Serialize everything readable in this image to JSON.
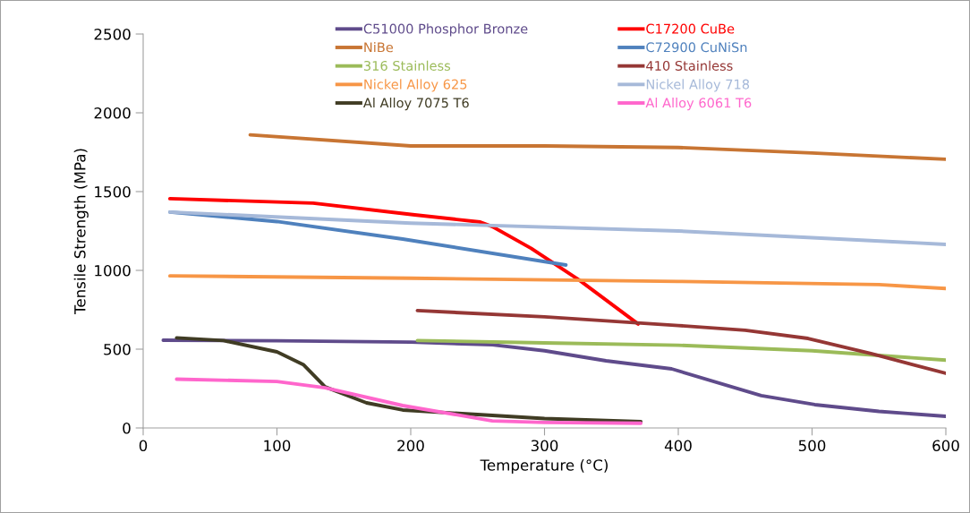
{
  "chart_data": {
    "type": "line",
    "xlabel": "Temperature (°C)",
    "ylabel": "Tensile Strength (MPa)",
    "xlim": [
      0,
      600
    ],
    "xticks": [
      0,
      100,
      200,
      300,
      400,
      500,
      600
    ],
    "ylim": [
      0,
      2500
    ],
    "yticks": [
      0,
      500,
      1000,
      1500,
      2000,
      2500
    ],
    "grid": false,
    "legend": "top",
    "marker": "none",
    "line_style": "solid",
    "series": [
      {
        "name": "C51000 Phosphor Bronze",
        "color": "#5f4b8b",
        "x": [
          15,
          100,
          200,
          261,
          300,
          346,
          395,
          462,
          502,
          550,
          600
        ],
        "values": [
          557,
          553,
          545,
          528,
          490,
          426,
          375,
          205,
          148,
          105,
          74
        ]
      },
      {
        "name": "C17200 CuBe",
        "color": "#ff0000",
        "x": [
          20,
          127,
          203,
          252,
          261,
          290,
          326,
          370
        ],
        "values": [
          1455,
          1427,
          1352,
          1307,
          1278,
          1140,
          938,
          660
        ]
      },
      {
        "name": "NiBe",
        "color": "#c87533",
        "x": [
          80,
          200,
          300,
          400,
          500,
          600
        ],
        "values": [
          1860,
          1790,
          1790,
          1780,
          1745,
          1705
        ]
      },
      {
        "name": "C72900 CuNiSn",
        "color": "#4f81bd",
        "x": [
          20,
          100,
          194,
          316
        ],
        "values": [
          1370,
          1310,
          1199,
          1034
        ]
      },
      {
        "name": "316 Stainless",
        "color": "#9bbb59",
        "x": [
          205,
          300,
          400,
          500,
          600
        ],
        "values": [
          555,
          540,
          525,
          490,
          430
        ]
      },
      {
        "name": "410 Stainless",
        "color": "#953735",
        "x": [
          205,
          300,
          400,
          450,
          497,
          544,
          600
        ],
        "values": [
          745,
          705,
          650,
          620,
          568,
          472,
          347
        ]
      },
      {
        "name": "Nickel Alloy 625",
        "color": "#f79646",
        "x": [
          20,
          200,
          400,
          550,
          600
        ],
        "values": [
          965,
          950,
          930,
          910,
          885
        ]
      },
      {
        "name": "Nickel Alloy 718",
        "color": "#a6b9d9",
        "x": [
          20,
          200,
          400,
          600
        ],
        "values": [
          1370,
          1300,
          1250,
          1165
        ]
      },
      {
        "name": "Al Alloy 7075 T6",
        "color": "#403c24",
        "x": [
          25,
          60,
          100,
          120,
          136,
          167,
          194,
          250,
          300,
          372
        ],
        "values": [
          572,
          555,
          483,
          400,
          261,
          159,
          114,
          85,
          60,
          40
        ]
      },
      {
        "name": "Al Alloy 6061 T6",
        "color": "#ff66cc",
        "x": [
          25,
          100,
          136,
          194,
          261,
          300,
          372
        ],
        "values": [
          310,
          295,
          255,
          142,
          45,
          35,
          30
        ]
      }
    ]
  }
}
